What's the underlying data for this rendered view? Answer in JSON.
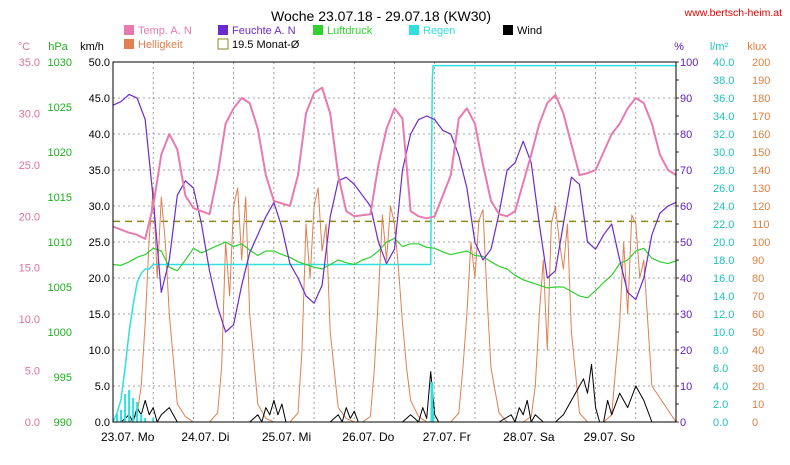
{
  "chart_data": {
    "type": "line",
    "title": "Woche 23.07.18 - 29.07.18 (KW30)",
    "source": "www.bertsch-heim.at",
    "x_labels": [
      "23.07.  Mo",
      "24.07.  Di",
      "25.07.  Mi",
      "26.07.  Do",
      "27.07.  Fr",
      "28.07.  Sa",
      "29.07.  So"
    ],
    "x_range_days": [
      0,
      7
    ],
    "axes": [
      {
        "id": "temp",
        "unit": "°C",
        "min": 0,
        "max": 35,
        "step": 5,
        "decimals": 1,
        "color": "#e070a0",
        "side": "left"
      },
      {
        "id": "hpa",
        "unit": "hPa",
        "min": 990,
        "max": 1030,
        "step": 5,
        "decimals": 0,
        "color": "#20b020",
        "side": "left"
      },
      {
        "id": "kmh",
        "unit": "km/h",
        "min": 0,
        "max": 50,
        "step": 5,
        "decimals": 1,
        "color": "#000000",
        "side": "left"
      },
      {
        "id": "pct",
        "unit": "%",
        "min": 0,
        "max": 100,
        "step": 10,
        "decimals": 0,
        "color": "#6020c0",
        "side": "right"
      },
      {
        "id": "lm2",
        "unit": "l/m²",
        "min": 0,
        "max": 40,
        "step": 2,
        "decimals": 1,
        "color": "#20c0c0",
        "side": "right"
      },
      {
        "id": "klux",
        "unit": "klux",
        "min": 0,
        "max": 200,
        "step": 10,
        "decimals": 0,
        "color": "#e08040",
        "side": "right"
      }
    ],
    "legend": [
      {
        "label": "Temp. A. N",
        "color": "#e87ab0",
        "kind": "fill"
      },
      {
        "label": "Feuchte A. N",
        "color": "#6a2ad0",
        "kind": "fill"
      },
      {
        "label": "Luftdruck",
        "color": "#30d030",
        "kind": "fill"
      },
      {
        "label": "Regen",
        "color": "#30e0e0",
        "kind": "fill"
      },
      {
        "label": "Wind",
        "color": "#000000",
        "kind": "fill"
      },
      {
        "label": "Helligkeit",
        "color": "#e08050",
        "kind": "fill"
      },
      {
        "label": "19.5 Monat-Ø",
        "color": "#8a8a20",
        "kind": "outline"
      }
    ],
    "series": [
      {
        "name": "Temp. A. N",
        "axis": "temp",
        "color": "#e87ab0",
        "width": 2,
        "x": [
          0,
          0.2,
          0.3,
          0.4,
          0.5,
          0.6,
          0.7,
          0.8,
          0.9,
          1.0,
          1.2,
          1.3,
          1.4,
          1.5,
          1.6,
          1.7,
          1.8,
          1.9,
          2.0,
          2.2,
          2.3,
          2.4,
          2.5,
          2.6,
          2.7,
          2.8,
          2.9,
          3.0,
          3.2,
          3.3,
          3.4,
          3.5,
          3.6,
          3.7,
          3.8,
          3.9,
          4.0,
          4.2,
          4.3,
          4.4,
          4.5,
          4.6,
          4.7,
          4.8,
          4.9,
          5.0,
          5.2,
          5.3,
          5.4,
          5.5,
          5.6,
          5.7,
          5.8,
          5.9,
          6.0,
          6.2,
          6.3,
          6.4,
          6.5,
          6.6,
          6.7,
          6.8,
          6.9,
          7.0
        ],
        "y": [
          19.0,
          18.4,
          18.2,
          17.8,
          21,
          26,
          28,
          26.5,
          22,
          20.8,
          20.2,
          24,
          29,
          30.5,
          31.5,
          31,
          28.5,
          24,
          21.5,
          21.0,
          24,
          30,
          32,
          32.5,
          30,
          24,
          20.5,
          20.0,
          20.2,
          25,
          28.5,
          30.5,
          29.5,
          20.5,
          20.0,
          19.8,
          20.0,
          24,
          29.5,
          30.5,
          29,
          25,
          21.5,
          20.2,
          20.0,
          20.5,
          26,
          29,
          31,
          31.8,
          30,
          27,
          24,
          24.2,
          24.5,
          28,
          29,
          30.5,
          31.5,
          31,
          29,
          26,
          24.5,
          24.0
        ]
      },
      {
        "name": "Feuchte A. N",
        "axis": "pct",
        "color": "#6a2ad0",
        "width": 1.2,
        "x": [
          0,
          0.1,
          0.2,
          0.3,
          0.4,
          0.5,
          0.6,
          0.7,
          0.8,
          0.9,
          1.0,
          1.1,
          1.2,
          1.3,
          1.4,
          1.5,
          1.6,
          1.7,
          1.8,
          1.9,
          2.0,
          2.1,
          2.2,
          2.3,
          2.4,
          2.5,
          2.6,
          2.7,
          2.8,
          2.9,
          3.0,
          3.1,
          3.2,
          3.3,
          3.4,
          3.5,
          3.6,
          3.7,
          3.8,
          3.9,
          4.0,
          4.1,
          4.2,
          4.3,
          4.4,
          4.5,
          4.6,
          4.7,
          4.8,
          4.9,
          5.0,
          5.1,
          5.2,
          5.3,
          5.4,
          5.5,
          5.6,
          5.7,
          5.8,
          5.9,
          6.0,
          6.1,
          6.2,
          6.3,
          6.4,
          6.5,
          6.6,
          6.7,
          6.8,
          6.9,
          7.0
        ],
        "y": [
          88,
          89,
          91,
          90,
          84,
          62,
          36,
          45,
          63,
          67,
          65,
          55,
          42,
          32,
          25,
          27,
          38,
          47,
          52,
          57,
          61,
          54,
          44,
          40,
          35,
          33,
          38,
          57,
          67,
          68,
          66,
          63,
          60,
          50,
          44,
          48,
          70,
          80,
          84,
          85,
          84,
          81,
          80,
          74,
          65,
          50,
          45,
          48,
          58,
          70,
          72,
          78,
          72,
          55,
          40,
          42,
          55,
          68,
          66,
          50,
          48,
          52,
          55,
          45,
          36,
          34,
          40,
          52,
          58,
          60,
          61
        ]
      },
      {
        "name": "Luftdruck",
        "axis": "hpa",
        "color": "#30d030",
        "width": 1.2,
        "x": [
          0,
          0.1,
          0.2,
          0.3,
          0.4,
          0.5,
          0.6,
          0.7,
          0.8,
          0.9,
          1.0,
          1.1,
          1.2,
          1.3,
          1.4,
          1.5,
          1.6,
          1.7,
          1.8,
          1.9,
          2.0,
          2.1,
          2.2,
          2.3,
          2.4,
          2.5,
          2.6,
          2.7,
          2.8,
          2.9,
          3.0,
          3.1,
          3.2,
          3.3,
          3.4,
          3.5,
          3.6,
          3.7,
          3.8,
          3.9,
          4.0,
          4.1,
          4.2,
          4.3,
          4.4,
          4.5,
          4.6,
          4.7,
          4.8,
          4.9,
          5.0,
          5.1,
          5.2,
          5.3,
          5.4,
          5.5,
          5.6,
          5.7,
          5.8,
          5.9,
          6.0,
          6.1,
          6.2,
          6.3,
          6.4,
          6.5,
          6.6,
          6.7,
          6.8,
          6.9,
          7.0
        ],
        "y": [
          1007.5,
          1007.4,
          1007.8,
          1008.3,
          1008.6,
          1009.3,
          1009.0,
          1007.2,
          1006.8,
          1008.0,
          1009.3,
          1008.8,
          1009.2,
          1009.6,
          1010.0,
          1009.5,
          1009.8,
          1009.1,
          1008.5,
          1009.0,
          1009.0,
          1008.6,
          1008.3,
          1007.8,
          1007.5,
          1007.2,
          1007.0,
          1007.5,
          1008.0,
          1007.7,
          1007.5,
          1008.0,
          1008.3,
          1009.0,
          1010.0,
          1010.4,
          1009.5,
          1009.8,
          1009.8,
          1009.4,
          1009.3,
          1008.9,
          1008.6,
          1008.8,
          1009.0,
          1008.5,
          1008.4,
          1007.8,
          1007.3,
          1007.0,
          1006.3,
          1005.8,
          1005.5,
          1005.2,
          1004.9,
          1005.0,
          1005.0,
          1004.5,
          1004.0,
          1003.8,
          1004.6,
          1005.5,
          1006.3,
          1007.6,
          1008.0,
          1009.0,
          1009.3,
          1008.2,
          1007.8,
          1007.6,
          1007.9
        ]
      },
      {
        "name": "Regen",
        "axis": "lm2",
        "color": "#30e0e0",
        "width": 1.5,
        "x": [
          0,
          0.05,
          0.1,
          0.15,
          0.2,
          0.25,
          0.3,
          0.35,
          0.4,
          0.45,
          0.5,
          3.95,
          3.96,
          3.97,
          3.98,
          4.0,
          4.1,
          7.0
        ],
        "y": [
          0,
          1,
          2.5,
          6,
          10,
          13,
          15.5,
          16.5,
          17,
          17,
          17.5,
          17.5,
          28,
          38,
          39.6,
          39.6,
          39.6,
          39.6
        ]
      },
      {
        "name": "Wind",
        "axis": "kmh",
        "color": "#000000",
        "width": 1,
        "x": [
          0,
          0.1,
          0.2,
          0.25,
          0.3,
          0.35,
          0.4,
          0.45,
          0.5,
          0.55,
          0.6,
          0.7,
          0.8,
          0.9,
          1.0,
          1.5,
          1.7,
          1.8,
          1.85,
          1.9,
          1.95,
          2.0,
          2.05,
          2.1,
          2.15,
          2.2,
          2.6,
          2.7,
          2.8,
          2.85,
          2.9,
          2.95,
          3.0,
          3.05,
          3.1,
          3.2,
          3.5,
          3.6,
          3.7,
          3.8,
          3.85,
          3.9,
          3.95,
          4.0,
          4.05,
          4.1,
          4.2,
          4.5,
          4.8,
          4.95,
          5.0,
          5.05,
          5.1,
          5.15,
          5.2,
          5.25,
          5.3,
          5.35,
          5.4,
          5.5,
          5.6,
          5.7,
          5.8,
          5.85,
          5.9,
          5.95,
          6.0,
          6.05,
          6.1,
          6.15,
          6.2,
          6.3,
          6.4,
          6.5,
          6.6,
          6.7,
          7.0
        ],
        "y": [
          0,
          0,
          1,
          0,
          2,
          1,
          3,
          1,
          2,
          0,
          1,
          2,
          0,
          0,
          0,
          0,
          0,
          1,
          0,
          2,
          1,
          3,
          1,
          2.5,
          0,
          0,
          0,
          0,
          1,
          0,
          2,
          0.5,
          1.5,
          0,
          0,
          0,
          0,
          0,
          1,
          0,
          2,
          0.5,
          7,
          1,
          0,
          0,
          0,
          0,
          0,
          1,
          0,
          2,
          1,
          3,
          0,
          1,
          0.5,
          0,
          0,
          0,
          1,
          3,
          5,
          6,
          4,
          8,
          2,
          0,
          0,
          3,
          1,
          4,
          2,
          5,
          3,
          0,
          0
        ]
      },
      {
        "name": "Helligkeit",
        "axis": "klux",
        "color": "#e08050",
        "width": 1,
        "x": [
          0,
          0.1,
          0.2,
          0.3,
          0.35,
          0.4,
          0.45,
          0.5,
          0.55,
          0.6,
          0.65,
          0.7,
          0.8,
          0.9,
          1.0,
          1.1,
          1.2,
          1.3,
          1.35,
          1.4,
          1.45,
          1.5,
          1.55,
          1.6,
          1.65,
          1.7,
          1.8,
          1.9,
          2.0,
          2.1,
          2.2,
          2.3,
          2.35,
          2.4,
          2.45,
          2.5,
          2.55,
          2.6,
          2.65,
          2.7,
          2.8,
          2.9,
          3.0,
          3.1,
          3.2,
          3.25,
          3.3,
          3.35,
          3.4,
          3.45,
          3.5,
          3.55,
          3.6,
          3.65,
          3.7,
          3.8,
          3.9,
          4.0,
          4.1,
          4.2,
          4.3,
          4.35,
          4.4,
          4.45,
          4.5,
          4.55,
          4.6,
          4.65,
          4.7,
          4.8,
          4.9,
          5.0,
          5.1,
          5.2,
          5.25,
          5.3,
          5.35,
          5.4,
          5.45,
          5.5,
          5.55,
          5.6,
          5.65,
          5.7,
          5.8,
          5.9,
          6.0,
          6.1,
          6.2,
          6.25,
          6.3,
          6.35,
          6.4,
          6.45,
          6.5,
          6.55,
          6.6,
          6.7,
          7.0
        ],
        "y": [
          0,
          0,
          0,
          4,
          20,
          55,
          102,
          130,
          80,
          125,
          100,
          60,
          10,
          3,
          0,
          0,
          0,
          5,
          30,
          100,
          70,
          120,
          130,
          90,
          125,
          60,
          10,
          2,
          0,
          0,
          0,
          5,
          40,
          110,
          80,
          120,
          130,
          95,
          110,
          50,
          8,
          2,
          0,
          0,
          3,
          30,
          70,
          115,
          90,
          120,
          110,
          85,
          55,
          30,
          12,
          3,
          0,
          0,
          0,
          0,
          5,
          30,
          60,
          100,
          80,
          112,
          118,
          70,
          30,
          5,
          0,
          0,
          0,
          3,
          20,
          60,
          90,
          40,
          110,
          120,
          100,
          85,
          110,
          50,
          5,
          0,
          0,
          0,
          4,
          30,
          55,
          100,
          60,
          115,
          110,
          80,
          90,
          20,
          0
        ]
      }
    ],
    "reference_lines": [
      {
        "label": "19.5 Monat-Ø",
        "axis": "temp",
        "y": 19.5,
        "color": "#8a8a20",
        "style": "dashed"
      }
    ],
    "grid": true,
    "legend_position": "top"
  }
}
